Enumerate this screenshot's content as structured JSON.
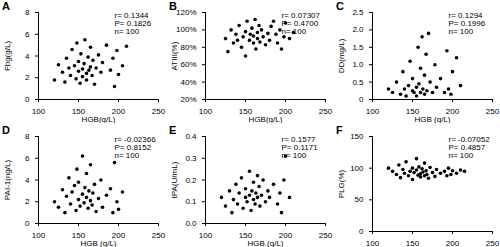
{
  "chart_data": [
    {
      "type": "scatter",
      "title": "A",
      "x_label": "HGB(g/L)",
      "y_label": "Fbg(g/L)",
      "color": "#000000",
      "annotations": [
        "r= 0.1344",
        "P= 0.1826",
        "n= 100"
      ],
      "xlim": [
        100,
        250
      ],
      "xticks": [
        100,
        150,
        200,
        250
      ],
      "ylim": [
        0,
        8
      ],
      "yticks": [
        0,
        2,
        4,
        6,
        8
      ],
      "x": [
        120,
        125,
        130,
        133,
        135,
        138,
        140,
        142,
        145,
        147,
        148,
        150,
        150,
        152,
        153,
        155,
        155,
        157,
        158,
        160,
        160,
        162,
        163,
        165,
        165,
        167,
        168,
        170,
        172,
        175,
        178,
        180,
        185,
        190,
        193,
        195,
        198,
        200,
        205,
        210
      ],
      "values": [
        1.8,
        3.2,
        2.5,
        1.6,
        3.8,
        2.9,
        2.2,
        4.6,
        3.1,
        1.9,
        5.2,
        2.6,
        3.5,
        1.5,
        4.2,
        2.8,
        2.1,
        3.3,
        5.5,
        2.4,
        1.8,
        3.9,
        2.7,
        4.8,
        3.0,
        2.2,
        3.6,
        1.4,
        2.9,
        4.1,
        2.5,
        3.4,
        5.0,
        2.7,
        3.8,
        1.2,
        4.5,
        2.3,
        3.1,
        4.9
      ]
    },
    {
      "type": "scatter",
      "title": "B",
      "x_label": "HGB(g/L)",
      "y_label": "ATIII(%)",
      "color": "#000000",
      "annotations": [
        "r= 0.07307",
        "P= 0.4700",
        "n= 100"
      ],
      "xlim": [
        100,
        250
      ],
      "xticks": [
        100,
        150,
        200,
        250
      ],
      "ylim": [
        20,
        120
      ],
      "yticks": [
        {
          "value": 20,
          "label": "20%"
        },
        {
          "value": 40,
          "label": "40%"
        },
        {
          "value": 60,
          "label": "60%"
        },
        {
          "value": 80,
          "label": "80%"
        },
        {
          "value": 100,
          "label": "100%"
        },
        {
          "value": 120,
          "label": "120%"
        }
      ],
      "x": [
        125,
        128,
        132,
        135,
        138,
        140,
        142,
        145,
        147,
        150,
        150,
        152,
        155,
        156,
        158,
        160,
        160,
        162,
        163,
        165,
        165,
        167,
        168,
        170,
        172,
        175,
        178,
        180,
        182,
        185,
        188,
        190,
        193,
        195,
        198,
        200,
        205,
        210
      ],
      "values": [
        90,
        75,
        100,
        85,
        95,
        88,
        105,
        80,
        92,
        98,
        70,
        110,
        88,
        95,
        102,
        85,
        93,
        112,
        78,
        97,
        90,
        105,
        86,
        100,
        92,
        83,
        96,
        88,
        104,
        110,
        95,
        85,
        100,
        78,
        92,
        108,
        90,
        97
      ]
    },
    {
      "type": "scatter",
      "title": "C",
      "x_label": "HGB (g/L)",
      "y_label": "DD(mg/L)",
      "color": "#000000",
      "annotations": [
        "r= 0.1294",
        "P= 0.1996",
        "n= 100"
      ],
      "xlim": [
        100,
        250
      ],
      "xticks": [
        100,
        150,
        200,
        250
      ],
      "ylim": [
        0,
        2.5
      ],
      "yticks": [
        0,
        0.5,
        {
          "value": 1,
          "label": "1.0"
        },
        1.5,
        {
          "value": 2,
          "label": "2.0"
        },
        2.5
      ],
      "x": [
        120,
        125,
        130,
        135,
        138,
        140,
        142,
        145,
        147,
        150,
        150,
        152,
        155,
        155,
        157,
        158,
        160,
        160,
        162,
        163,
        165,
        165,
        167,
        168,
        170,
        172,
        175,
        178,
        180,
        185,
        190,
        193,
        195,
        198,
        200,
        205,
        210
      ],
      "values": [
        0.3,
        0.2,
        0.5,
        0.15,
        0.8,
        0.3,
        0.1,
        0.4,
        1.1,
        0.25,
        0.6,
        0.2,
        0.35,
        0.1,
        1.5,
        0.45,
        0.2,
        0.9,
        1.8,
        0.3,
        0.15,
        0.7,
        1.3,
        0.25,
        1.9,
        0.5,
        0.2,
        1.0,
        0.35,
        0.6,
        0.2,
        1.4,
        0.3,
        0.15,
        0.8,
        1.2,
        0.4
      ]
    },
    {
      "type": "scatter",
      "title": "D",
      "x_label": "HGB (g/L)",
      "y_label": "PAI-1(ng/L)",
      "color": "#000000",
      "annotations": [
        "r= -0.02366",
        "P= 0.8152",
        "n= 100"
      ],
      "xlim": [
        100,
        250
      ],
      "xticks": [
        100,
        150,
        200,
        250
      ],
      "ylim": [
        0,
        8
      ],
      "yticks": [
        0,
        2,
        4,
        6,
        8
      ],
      "x": [
        120,
        125,
        130,
        133,
        135,
        138,
        140,
        142,
        145,
        147,
        148,
        150,
        150,
        152,
        155,
        155,
        157,
        158,
        160,
        160,
        162,
        163,
        165,
        165,
        167,
        168,
        170,
        172,
        175,
        178,
        180,
        185,
        190,
        193,
        195,
        198,
        200,
        205
      ],
      "values": [
        2.0,
        1.5,
        3.1,
        1.0,
        2.5,
        4.2,
        1.8,
        2.9,
        3.5,
        1.2,
        5.0,
        2.2,
        3.8,
        1.6,
        2.7,
        6.2,
        1.9,
        3.3,
        2.4,
        4.6,
        1.4,
        3.0,
        2.1,
        5.4,
        1.7,
        2.8,
        3.6,
        1.1,
        2.3,
        4.0,
        1.5,
        2.6,
        3.2,
        1.0,
        5.6,
        2.0,
        1.3,
        2.9
      ]
    },
    {
      "type": "scatter",
      "title": "E",
      "x_label": "HGB (g/L)",
      "y_label": "tPA(U/mL)",
      "color": "#000000",
      "annotations": [
        "r= 0.1577",
        "P= 0.1171",
        "n= 100"
      ],
      "xlim": [
        100,
        250
      ],
      "xticks": [
        100,
        150,
        200,
        250
      ],
      "ylim": [
        0,
        0.4
      ],
      "yticks": [
        {
          "value": 0,
          "label": "0.0"
        },
        0.1,
        0.2,
        0.3,
        0.4
      ],
      "x": [
        120,
        125,
        130,
        133,
        135,
        138,
        140,
        142,
        145,
        147,
        150,
        150,
        152,
        155,
        155,
        157,
        158,
        160,
        160,
        162,
        163,
        165,
        165,
        167,
        168,
        170,
        172,
        175,
        178,
        180,
        185,
        190,
        193,
        195,
        198,
        200,
        205
      ],
      "values": [
        0.12,
        0.08,
        0.15,
        0.05,
        0.11,
        0.18,
        0.09,
        0.14,
        0.21,
        0.07,
        0.12,
        0.16,
        0.1,
        0.13,
        0.24,
        0.06,
        0.15,
        0.11,
        0.19,
        0.09,
        0.14,
        0.22,
        0.12,
        0.17,
        0.08,
        0.13,
        0.2,
        0.1,
        0.15,
        0.12,
        0.18,
        0.09,
        0.14,
        0.05,
        0.2,
        0.31,
        0.12
      ]
    },
    {
      "type": "scatter",
      "title": "F",
      "y_label": "PLG(%)",
      "color": "#000000",
      "annotations": [
        "r= -0.07052",
        "P= 0.4857",
        "n= 100"
      ],
      "xlim": [
        100,
        250
      ],
      "xticks": [
        100,
        150,
        200,
        250
      ],
      "ylim": [
        0,
        150
      ],
      "yticks": [
        0,
        50,
        100,
        150
      ],
      "x": [
        120,
        125,
        130,
        133,
        135,
        138,
        140,
        142,
        145,
        147,
        150,
        150,
        152,
        155,
        155,
        157,
        158,
        160,
        160,
        162,
        163,
        165,
        165,
        167,
        168,
        170,
        172,
        175,
        178,
        180,
        185,
        190,
        193,
        195,
        198,
        200,
        205,
        210,
        215
      ],
      "values": [
        100,
        95,
        90,
        105,
        85,
        98,
        92,
        110,
        88,
        95,
        100,
        82,
        93,
        97,
        115,
        89,
        102,
        91,
        86,
        99,
        94,
        108,
        88,
        96,
        90,
        84,
        101,
        93,
        87,
        98,
        92,
        95,
        88,
        100,
        90,
        96,
        92,
        97,
        95
      ]
    }
  ]
}
